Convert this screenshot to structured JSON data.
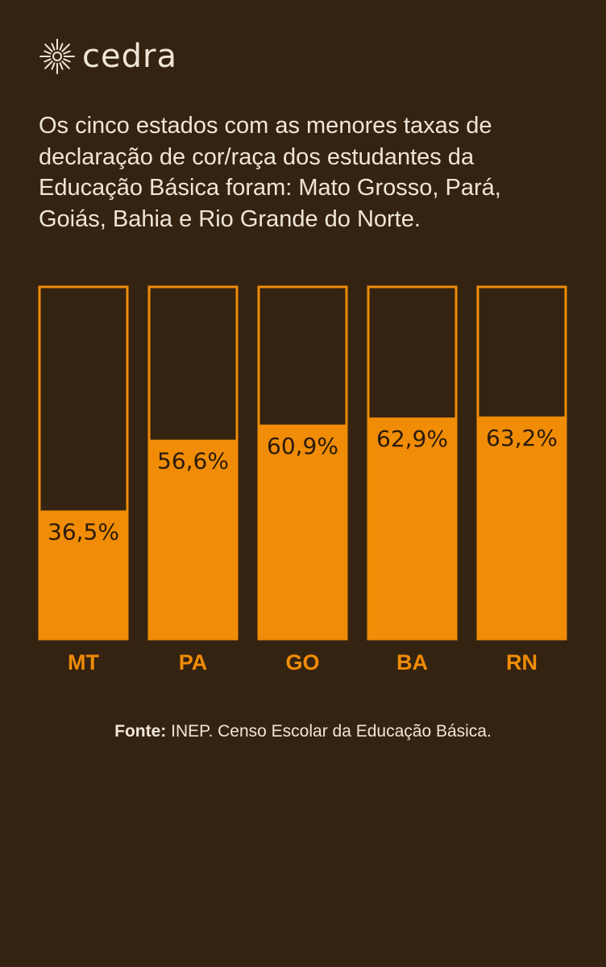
{
  "brand": {
    "name": "cedra",
    "icon": "sun-burst-icon"
  },
  "intro_text": "Os cinco estados com as menores taxas de declaração de cor/raça dos estudantes da Educação Básica foram: Mato Grosso, Pará, Goiás, Bahia e Rio Grande do Norte.",
  "source": {
    "label": "Fonte:",
    "text": "INEP. Censo Escolar da Educação Básica."
  },
  "colors": {
    "background": "#352312",
    "accent": "#f08c05",
    "text": "#efe6d8",
    "value_text": "#2b1b0c"
  },
  "chart_data": {
    "type": "bar",
    "categories": [
      "MT",
      "PA",
      "GO",
      "BA",
      "RN"
    ],
    "values": [
      36.5,
      56.6,
      60.9,
      62.9,
      63.2
    ],
    "value_labels": [
      "36,5%",
      "56,6%",
      "60,9%",
      "62,9%",
      "63,2%"
    ],
    "ylim": [
      0,
      100
    ],
    "grid": false
  }
}
